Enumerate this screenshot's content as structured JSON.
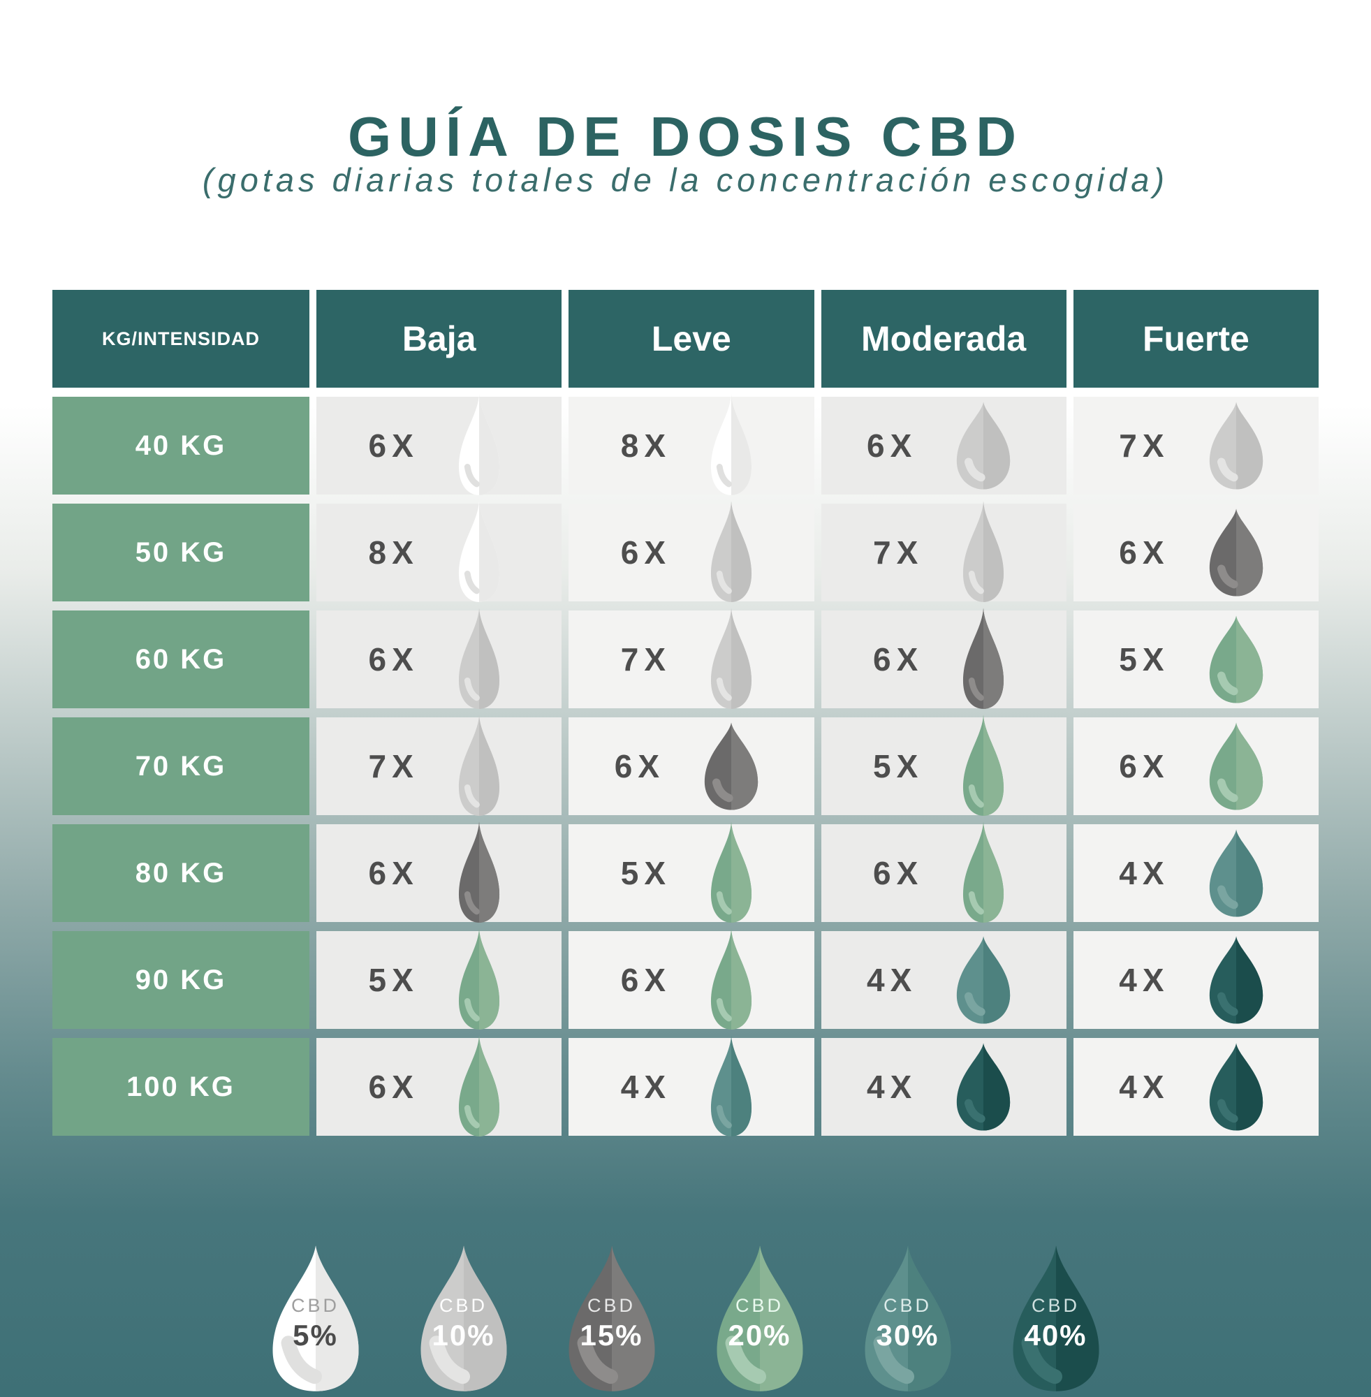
{
  "title": "GUÍA DE DOSIS CBD",
  "subtitle": "(gotas diarias totales de la concentración escogida)",
  "table": {
    "corner_header": "KG/INTENSIDAD",
    "columns": [
      "Baja",
      "Leve",
      "Moderada",
      "Fuerte"
    ],
    "rows": [
      {
        "weight": "40 KG",
        "cells": [
          {
            "count": "6X",
            "percent": 5,
            "shape": "narrow"
          },
          {
            "count": "8X",
            "percent": 5,
            "shape": "narrow"
          },
          {
            "count": "6X",
            "percent": 10,
            "shape": "round"
          },
          {
            "count": "7X",
            "percent": 10,
            "shape": "round"
          }
        ]
      },
      {
        "weight": "50 KG",
        "cells": [
          {
            "count": "8X",
            "percent": 5,
            "shape": "narrow"
          },
          {
            "count": "6X",
            "percent": 10,
            "shape": "narrow"
          },
          {
            "count": "7X",
            "percent": 10,
            "shape": "narrow"
          },
          {
            "count": "6X",
            "percent": 15,
            "shape": "round"
          }
        ]
      },
      {
        "weight": "60 KG",
        "cells": [
          {
            "count": "6X",
            "percent": 10,
            "shape": "narrow"
          },
          {
            "count": "7X",
            "percent": 10,
            "shape": "narrow"
          },
          {
            "count": "6X",
            "percent": 15,
            "shape": "narrow"
          },
          {
            "count": "5X",
            "percent": 20,
            "shape": "round"
          }
        ]
      },
      {
        "weight": "70 KG",
        "cells": [
          {
            "count": "7X",
            "percent": 10,
            "shape": "narrow"
          },
          {
            "count": "6X",
            "percent": 15,
            "shape": "round"
          },
          {
            "count": "5X",
            "percent": 20,
            "shape": "narrow"
          },
          {
            "count": "6X",
            "percent": 20,
            "shape": "round"
          }
        ]
      },
      {
        "weight": "80 KG",
        "cells": [
          {
            "count": "6X",
            "percent": 15,
            "shape": "narrow"
          },
          {
            "count": "5X",
            "percent": 20,
            "shape": "narrow"
          },
          {
            "count": "6X",
            "percent": 20,
            "shape": "narrow"
          },
          {
            "count": "4X",
            "percent": 30,
            "shape": "round"
          }
        ]
      },
      {
        "weight": "90 KG",
        "cells": [
          {
            "count": "5X",
            "percent": 20,
            "shape": "narrow"
          },
          {
            "count": "6X",
            "percent": 20,
            "shape": "narrow"
          },
          {
            "count": "4X",
            "percent": 30,
            "shape": "round"
          },
          {
            "count": "4X",
            "percent": 40,
            "shape": "round"
          }
        ]
      },
      {
        "weight": "100 KG",
        "cells": [
          {
            "count": "6X",
            "percent": 20,
            "shape": "narrow"
          },
          {
            "count": "4X",
            "percent": 30,
            "shape": "narrow"
          },
          {
            "count": "4X",
            "percent": 40,
            "shape": "round"
          },
          {
            "count": "4X",
            "percent": 40,
            "shape": "round"
          }
        ]
      }
    ]
  },
  "legend": {
    "label": "CBD",
    "items": [
      {
        "percent": "5%",
        "key": 5,
        "label_color": "#9e9e9e",
        "value_color": "#4b4b4b"
      },
      {
        "percent": "10%",
        "key": 10,
        "label_color": "#ffffff",
        "value_color": "#ffffff"
      },
      {
        "percent": "15%",
        "key": 15,
        "label_color": "#e8e8e8",
        "value_color": "#ffffff"
      },
      {
        "percent": "20%",
        "key": 20,
        "label_color": "#eafaef",
        "value_color": "#ffffff"
      },
      {
        "percent": "30%",
        "key": 30,
        "label_color": "#dcebe9",
        "value_color": "#ffffff"
      },
      {
        "percent": "40%",
        "key": 40,
        "label_color": "#cfe0df",
        "value_color": "#ffffff"
      }
    ]
  },
  "palette": {
    "page_teal": "#3e7076",
    "header_bg": "#2d6565",
    "weight_bg": "#72a487",
    "cell_bg_dark": "#ebebea",
    "cell_bg_light": "#f3f3f2",
    "title_color": "#2c6362",
    "subtitle_color": "#3a6d6c",
    "count_text": "#4d4d4d"
  },
  "drop_colors": {
    "5": {
      "left": "#ffffff",
      "right": "#e9e9e8",
      "shine": "#e0e0df"
    },
    "10": {
      "left": "#cccccb",
      "right": "#c0c0bf",
      "shine": "#e4e4e3"
    },
    "15": {
      "left": "#6b6a6a",
      "right": "#7d7c7b",
      "shine": "#8e8c8b"
    },
    "20": {
      "left": "#79a98b",
      "right": "#8bb495",
      "shine": "#a6cab1"
    },
    "30": {
      "left": "#5e908d",
      "right": "#4d817e",
      "shine": "#7aa5a1"
    },
    "40": {
      "left": "#275d5c",
      "right": "#1b4d4c",
      "shine": "#3a7170"
    }
  }
}
